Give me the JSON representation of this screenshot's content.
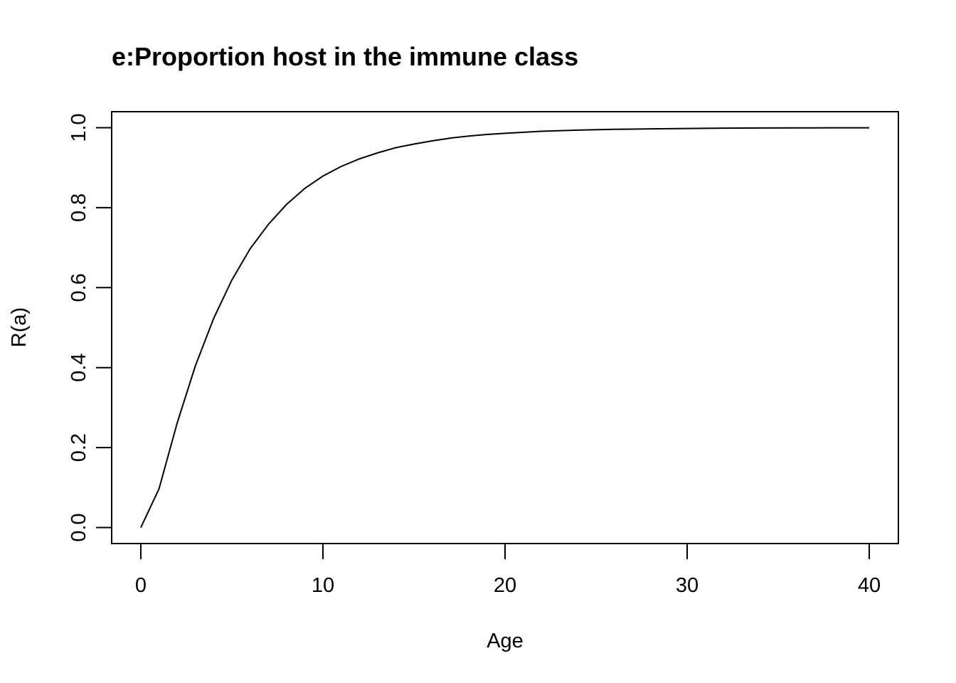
{
  "chart_data": {
    "type": "line",
    "title": "e:Proportion host in the immune class",
    "xlabel": "Age",
    "ylabel": "R(a)",
    "xlim": [
      -1.6,
      41.6
    ],
    "ylim": [
      -0.04,
      1.04
    ],
    "x_ticks": [
      0,
      10,
      20,
      30,
      40
    ],
    "y_ticks": [
      0.0,
      0.2,
      0.4,
      0.6,
      0.8,
      1.0
    ],
    "x_tick_labels": [
      "0",
      "10",
      "20",
      "30",
      "40"
    ],
    "y_tick_labels": [
      "0.0",
      "0.2",
      "0.4",
      "0.6",
      "0.8",
      "1.0"
    ],
    "grid": false,
    "legend": "none",
    "series": [
      {
        "x": [
          0,
          1,
          2,
          3,
          4,
          5,
          6,
          7,
          8,
          9,
          10,
          11,
          12,
          13,
          14,
          15,
          16,
          17,
          18,
          19,
          20,
          22,
          24,
          26,
          28,
          30,
          32,
          34,
          36,
          38,
          40
        ],
        "values": [
          0.0,
          0.097,
          0.262,
          0.405,
          0.523,
          0.619,
          0.697,
          0.758,
          0.808,
          0.848,
          0.879,
          0.903,
          0.922,
          0.937,
          0.95,
          0.959,
          0.967,
          0.974,
          0.979,
          0.983,
          0.986,
          0.991,
          0.994,
          0.996,
          0.997,
          0.998,
          0.9988,
          0.9992,
          0.9995,
          0.9997,
          0.9998
        ]
      }
    ]
  }
}
